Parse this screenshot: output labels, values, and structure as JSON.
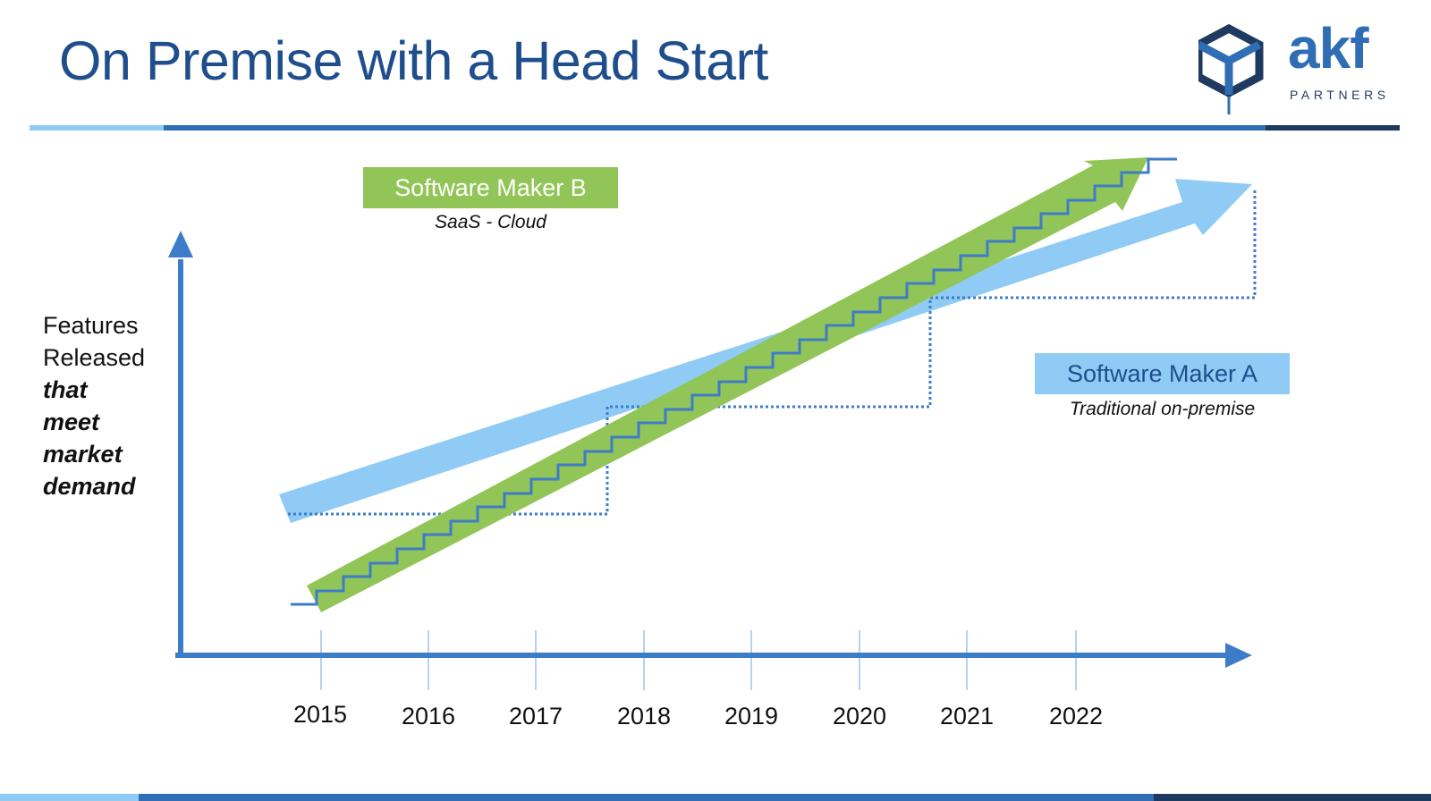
{
  "slide": {
    "title": "On Premise with a Head Start"
  },
  "logo": {
    "wordmark": "akf",
    "subtext": "PARTNERS"
  },
  "y_axis": {
    "label_lines": [
      {
        "text": "Features",
        "emphasis": false
      },
      {
        "text": "Released",
        "emphasis": false
      },
      {
        "text": "that",
        "emphasis": true
      },
      {
        "text": "meet",
        "emphasis": true
      },
      {
        "text": "market",
        "emphasis": true
      },
      {
        "text": "demand",
        "emphasis": true
      }
    ]
  },
  "x_axis": {
    "years": [
      "2015",
      "2016",
      "2017",
      "2018",
      "2019",
      "2020",
      "2021",
      "2022"
    ]
  },
  "series": {
    "maker_b": {
      "name": "Software Maker B",
      "subtitle": "SaaS - Cloud",
      "color": "#92c557"
    },
    "maker_a": {
      "name": "Software Maker A",
      "subtitle": "Traditional on-premise",
      "color": "#8fcbf5"
    }
  },
  "colors": {
    "title": "#1f4e8c",
    "axis": "#3d7cc9",
    "step_line": "#3d7cc9",
    "band_light": "#8fcbf5",
    "band_dark": "#2f6db5",
    "band_navy": "#1f3a5f"
  }
}
